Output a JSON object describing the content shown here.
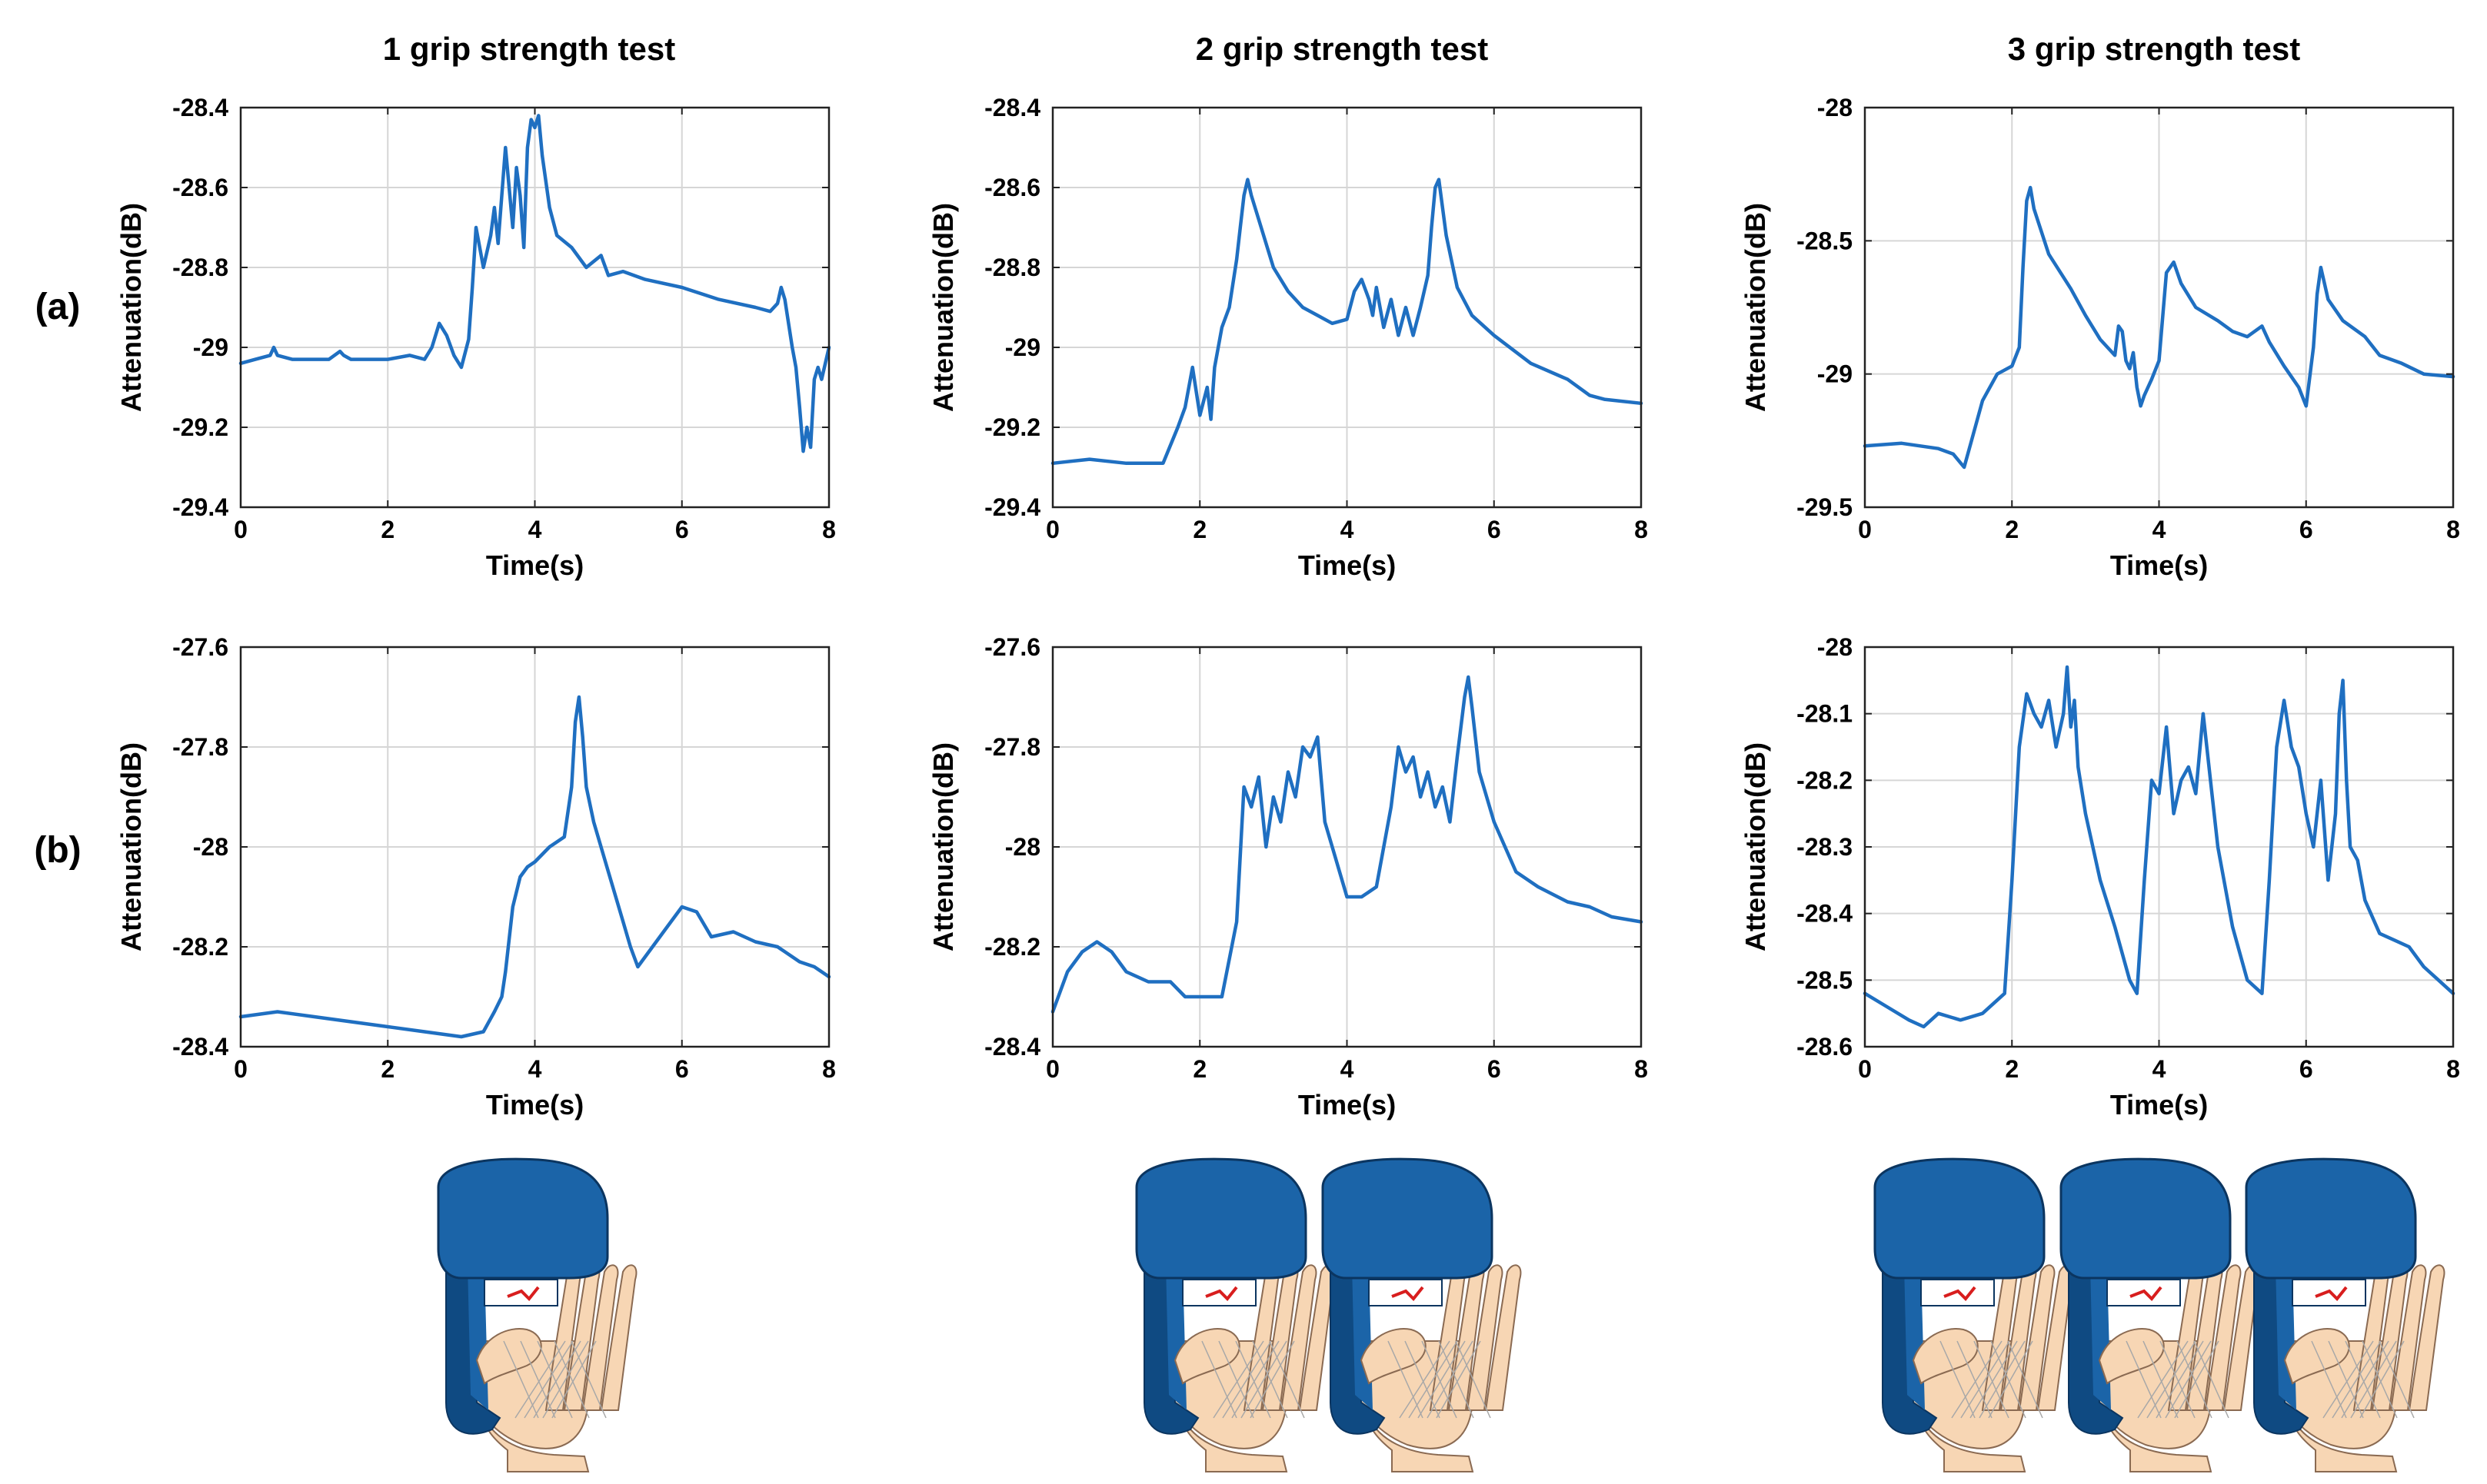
{
  "figure": {
    "column_titles": [
      "1 grip strength test",
      "2 grip strength test",
      "3 grip strength test"
    ],
    "row_labels": [
      "(a)",
      "(b)"
    ]
  },
  "colors": {
    "line": "#1f6fc1",
    "grid": "#d6d6d6",
    "device_blue": "#1b64a8",
    "device_dark": "#0f4a82",
    "skin": "#f7d6b4",
    "skin_outline": "#8a6a52",
    "sensor_red": "#d81e1e"
  },
  "illustration": {
    "icon": "hand-gripping-dynamometer-icon",
    "counts": [
      1,
      2,
      3
    ]
  },
  "chart_data": [
    {
      "type": "line",
      "row": "(a)",
      "title": "1 grip strength test",
      "xlabel": "Time(s)",
      "ylabel": "Attenuation(dB)",
      "xlim": [
        0,
        8
      ],
      "ylim": [
        -29.4,
        -28.4
      ],
      "xticks": [
        0,
        2,
        4,
        6,
        8
      ],
      "yticks": [
        -29.4,
        -29.2,
        -29,
        -28.8,
        -28.6,
        -28.4
      ],
      "xtick_labels": [
        "0",
        "2",
        "4",
        "6",
        "8"
      ],
      "ytick_labels": [
        "-29.4",
        "-29.2",
        "-29",
        "-28.8",
        "-28.6",
        "-28.4"
      ],
      "grid": true,
      "series": [
        {
          "x": [
            0,
            0.2,
            0.4,
            0.45,
            0.5,
            0.7,
            1.0,
            1.2,
            1.35,
            1.4,
            1.5,
            1.8,
            2.0,
            2.3,
            2.5,
            2.6,
            2.7,
            2.8,
            2.9,
            3.0,
            3.1,
            3.15,
            3.2,
            3.3,
            3.4,
            3.45,
            3.5,
            3.6,
            3.7,
            3.75,
            3.8,
            3.85,
            3.9,
            3.95,
            4.0,
            4.05,
            4.1,
            4.2,
            4.3,
            4.5,
            4.7,
            4.9,
            5.0,
            5.2,
            5.5,
            6.0,
            6.5,
            7.0,
            7.2,
            7.3,
            7.35,
            7.4,
            7.5,
            7.55,
            7.6,
            7.65,
            7.7,
            7.75,
            7.8,
            7.85,
            7.9,
            8.0
          ],
          "y": [
            -29.04,
            -29.03,
            -29.02,
            -29.0,
            -29.02,
            -29.03,
            -29.03,
            -29.03,
            -29.01,
            -29.02,
            -29.03,
            -29.03,
            -29.03,
            -29.02,
            -29.03,
            -29.0,
            -28.94,
            -28.97,
            -29.02,
            -29.05,
            -28.98,
            -28.85,
            -28.7,
            -28.8,
            -28.72,
            -28.65,
            -28.74,
            -28.5,
            -28.7,
            -28.55,
            -28.62,
            -28.75,
            -28.5,
            -28.43,
            -28.45,
            -28.42,
            -28.52,
            -28.65,
            -28.72,
            -28.75,
            -28.8,
            -28.77,
            -28.82,
            -28.81,
            -28.83,
            -28.85,
            -28.88,
            -28.9,
            -28.91,
            -28.89,
            -28.85,
            -28.88,
            -29.0,
            -29.05,
            -29.15,
            -29.26,
            -29.2,
            -29.25,
            -29.08,
            -29.05,
            -29.08,
            -29.0
          ]
        }
      ]
    },
    {
      "type": "line",
      "row": "(a)",
      "title": "2 grip strength test",
      "xlabel": "Time(s)",
      "ylabel": "Attenuation(dB)",
      "xlim": [
        0,
        8
      ],
      "ylim": [
        -29.4,
        -28.4
      ],
      "xticks": [
        0,
        2,
        4,
        6,
        8
      ],
      "yticks": [
        -29.4,
        -29.2,
        -29,
        -28.8,
        -28.6,
        -28.4
      ],
      "xtick_labels": [
        "0",
        "2",
        "4",
        "6",
        "8"
      ],
      "ytick_labels": [
        "-29.4",
        "-29.2",
        "-29",
        "-28.8",
        "-28.6",
        "-28.4"
      ],
      "grid": true,
      "series": [
        {
          "x": [
            0,
            0.5,
            1.0,
            1.5,
            1.7,
            1.8,
            1.9,
            2.0,
            2.1,
            2.15,
            2.2,
            2.3,
            2.4,
            2.5,
            2.55,
            2.6,
            2.65,
            2.7,
            2.8,
            3.0,
            3.2,
            3.4,
            3.6,
            3.8,
            4.0,
            4.1,
            4.2,
            4.3,
            4.35,
            4.4,
            4.5,
            4.6,
            4.7,
            4.8,
            4.9,
            5.0,
            5.1,
            5.15,
            5.2,
            5.25,
            5.3,
            5.35,
            5.5,
            5.7,
            6.0,
            6.5,
            7.0,
            7.3,
            7.5,
            8.0
          ],
          "y": [
            -29.29,
            -29.28,
            -29.29,
            -29.29,
            -29.2,
            -29.15,
            -29.05,
            -29.17,
            -29.1,
            -29.18,
            -29.05,
            -28.95,
            -28.9,
            -28.78,
            -28.7,
            -28.62,
            -28.58,
            -28.62,
            -28.68,
            -28.8,
            -28.86,
            -28.9,
            -28.92,
            -28.94,
            -28.93,
            -28.86,
            -28.83,
            -28.88,
            -28.92,
            -28.85,
            -28.95,
            -28.88,
            -28.97,
            -28.9,
            -28.97,
            -28.9,
            -28.82,
            -28.7,
            -28.6,
            -28.58,
            -28.65,
            -28.72,
            -28.85,
            -28.92,
            -28.97,
            -29.04,
            -29.08,
            -29.12,
            -29.13,
            -29.14
          ]
        }
      ]
    },
    {
      "type": "line",
      "row": "(a)",
      "title": "3 grip strength test",
      "xlabel": "Time(s)",
      "ylabel": "Attenuation(dB)",
      "xlim": [
        0,
        8
      ],
      "ylim": [
        -29.5,
        -28
      ],
      "xticks": [
        0,
        2,
        4,
        6,
        8
      ],
      "yticks": [
        -29.5,
        -29,
        -28.5,
        -28
      ],
      "xtick_labels": [
        "0",
        "2",
        "4",
        "6",
        "8"
      ],
      "ytick_labels": [
        "-29.5",
        "-29",
        "-28.5",
        "-28"
      ],
      "grid": true,
      "series": [
        {
          "x": [
            0,
            0.5,
            1.0,
            1.2,
            1.35,
            1.45,
            1.6,
            1.8,
            2.0,
            2.1,
            2.15,
            2.2,
            2.25,
            2.3,
            2.5,
            2.8,
            3.0,
            3.2,
            3.4,
            3.45,
            3.5,
            3.55,
            3.6,
            3.65,
            3.7,
            3.75,
            3.8,
            3.9,
            4.0,
            4.1,
            4.2,
            4.3,
            4.5,
            4.8,
            5.0,
            5.2,
            5.4,
            5.5,
            5.7,
            5.9,
            6.0,
            6.1,
            6.15,
            6.2,
            6.3,
            6.5,
            6.8,
            7.0,
            7.3,
            7.6,
            8.0
          ],
          "y": [
            -29.27,
            -29.26,
            -29.28,
            -29.3,
            -29.35,
            -29.25,
            -29.1,
            -29.0,
            -28.97,
            -28.9,
            -28.6,
            -28.35,
            -28.3,
            -28.38,
            -28.55,
            -28.68,
            -28.78,
            -28.87,
            -28.93,
            -28.82,
            -28.84,
            -28.95,
            -28.98,
            -28.92,
            -29.05,
            -29.12,
            -29.08,
            -29.02,
            -28.95,
            -28.62,
            -28.58,
            -28.66,
            -28.75,
            -28.8,
            -28.84,
            -28.86,
            -28.82,
            -28.88,
            -28.97,
            -29.05,
            -29.12,
            -28.9,
            -28.7,
            -28.6,
            -28.72,
            -28.8,
            -28.86,
            -28.93,
            -28.96,
            -29.0,
            -29.01
          ]
        }
      ]
    },
    {
      "type": "line",
      "row": "(b)",
      "title": "1 grip strength test",
      "xlabel": "Time(s)",
      "ylabel": "Attenuation(dB)",
      "xlim": [
        0,
        8
      ],
      "ylim": [
        -28.4,
        -27.6
      ],
      "xticks": [
        0,
        2,
        4,
        6,
        8
      ],
      "yticks": [
        -28.4,
        -28.2,
        -28,
        -27.8,
        -27.6
      ],
      "xtick_labels": [
        "0",
        "2",
        "4",
        "6",
        "8"
      ],
      "ytick_labels": [
        "-28.4",
        "-28.2",
        "-28",
        "-27.8",
        "-27.6"
      ],
      "grid": true,
      "series": [
        {
          "x": [
            0,
            0.5,
            1.0,
            1.5,
            2.0,
            2.5,
            3.0,
            3.3,
            3.45,
            3.55,
            3.6,
            3.7,
            3.8,
            3.9,
            4.0,
            4.2,
            4.4,
            4.5,
            4.55,
            4.6,
            4.65,
            4.7,
            4.8,
            5.0,
            5.2,
            5.3,
            5.4,
            5.6,
            5.8,
            6.0,
            6.2,
            6.4,
            6.7,
            7.0,
            7.3,
            7.6,
            7.8,
            8.0
          ],
          "y": [
            -28.34,
            -28.33,
            -28.34,
            -28.35,
            -28.36,
            -28.37,
            -28.38,
            -28.37,
            -28.33,
            -28.3,
            -28.25,
            -28.12,
            -28.06,
            -28.04,
            -28.03,
            -28.0,
            -27.98,
            -27.88,
            -27.75,
            -27.7,
            -27.78,
            -27.88,
            -27.95,
            -28.05,
            -28.15,
            -28.2,
            -28.24,
            -28.2,
            -28.16,
            -28.12,
            -28.13,
            -28.18,
            -28.17,
            -28.19,
            -28.2,
            -28.23,
            -28.24,
            -28.26
          ]
        }
      ]
    },
    {
      "type": "line",
      "row": "(b)",
      "title": "2 grip strength test",
      "xlabel": "Time(s)",
      "ylabel": "Attenuation(dB)",
      "xlim": [
        0,
        8
      ],
      "ylim": [
        -28.4,
        -27.6
      ],
      "xticks": [
        0,
        2,
        4,
        6,
        8
      ],
      "yticks": [
        -28.4,
        -28.2,
        -28,
        -27.8,
        -27.6
      ],
      "xtick_labels": [
        "0",
        "2",
        "4",
        "6",
        "8"
      ],
      "ytick_labels": [
        "-28.4",
        "-28.2",
        "-28",
        "-27.8",
        "-27.6"
      ],
      "grid": true,
      "series": [
        {
          "x": [
            0,
            0.2,
            0.4,
            0.6,
            0.8,
            1.0,
            1.3,
            1.6,
            1.8,
            2.0,
            2.3,
            2.5,
            2.6,
            2.7,
            2.8,
            2.9,
            3.0,
            3.1,
            3.2,
            3.3,
            3.4,
            3.5,
            3.6,
            3.7,
            3.8,
            4.0,
            4.2,
            4.4,
            4.6,
            4.7,
            4.8,
            4.9,
            5.0,
            5.1,
            5.2,
            5.3,
            5.4,
            5.5,
            5.6,
            5.65,
            5.7,
            5.8,
            6.0,
            6.3,
            6.6,
            7.0,
            7.3,
            7.6,
            8.0
          ],
          "y": [
            -28.33,
            -28.25,
            -28.21,
            -28.19,
            -28.21,
            -28.25,
            -28.27,
            -28.27,
            -28.3,
            -28.3,
            -28.3,
            -28.15,
            -27.88,
            -27.92,
            -27.86,
            -28.0,
            -27.9,
            -27.95,
            -27.85,
            -27.9,
            -27.8,
            -27.82,
            -27.78,
            -27.95,
            -28.0,
            -28.1,
            -28.1,
            -28.08,
            -27.92,
            -27.8,
            -27.85,
            -27.82,
            -27.9,
            -27.85,
            -27.92,
            -27.88,
            -27.95,
            -27.82,
            -27.7,
            -27.66,
            -27.72,
            -27.85,
            -27.95,
            -28.05,
            -28.08,
            -28.11,
            -28.12,
            -28.14,
            -28.15
          ]
        }
      ]
    },
    {
      "type": "line",
      "row": "(b)",
      "title": "3 grip strength test",
      "xlabel": "Time(s)",
      "ylabel": "Attenuation(dB)",
      "xlim": [
        0,
        8
      ],
      "ylim": [
        -28.6,
        -28
      ],
      "xticks": [
        0,
        2,
        4,
        6,
        8
      ],
      "yticks": [
        -28.6,
        -28.5,
        -28.4,
        -28.3,
        -28.2,
        -28.1,
        -28
      ],
      "xtick_labels": [
        "0",
        "2",
        "4",
        "6",
        "8"
      ],
      "ytick_labels": [
        "-28.6",
        "-28.5",
        "-28.4",
        "-28.3",
        "-28.2",
        "-28.1",
        "-28"
      ],
      "grid": true,
      "series": [
        {
          "x": [
            0,
            0.3,
            0.6,
            0.8,
            1.0,
            1.3,
            1.6,
            1.9,
            2.0,
            2.1,
            2.2,
            2.3,
            2.4,
            2.5,
            2.6,
            2.7,
            2.75,
            2.8,
            2.85,
            2.9,
            3.0,
            3.2,
            3.4,
            3.6,
            3.7,
            3.8,
            3.9,
            4.0,
            4.1,
            4.2,
            4.3,
            4.4,
            4.5,
            4.6,
            4.7,
            4.8,
            5.0,
            5.2,
            5.4,
            5.5,
            5.6,
            5.7,
            5.8,
            5.9,
            6.0,
            6.1,
            6.2,
            6.3,
            6.4,
            6.45,
            6.5,
            6.55,
            6.6,
            6.7,
            6.8,
            7.0,
            7.2,
            7.4,
            7.6,
            7.8,
            8.0
          ],
          "y": [
            -28.52,
            -28.54,
            -28.56,
            -28.57,
            -28.55,
            -28.56,
            -28.55,
            -28.52,
            -28.35,
            -28.15,
            -28.07,
            -28.1,
            -28.12,
            -28.08,
            -28.15,
            -28.1,
            -28.03,
            -28.12,
            -28.08,
            -28.18,
            -28.25,
            -28.35,
            -28.42,
            -28.5,
            -28.52,
            -28.35,
            -28.2,
            -28.22,
            -28.12,
            -28.25,
            -28.2,
            -28.18,
            -28.22,
            -28.1,
            -28.2,
            -28.3,
            -28.42,
            -28.5,
            -28.52,
            -28.35,
            -28.15,
            -28.08,
            -28.15,
            -28.18,
            -28.25,
            -28.3,
            -28.2,
            -28.35,
            -28.25,
            -28.1,
            -28.05,
            -28.2,
            -28.3,
            -28.32,
            -28.38,
            -28.43,
            -28.44,
            -28.45,
            -28.48,
            -28.5,
            -28.52
          ]
        }
      ]
    }
  ]
}
